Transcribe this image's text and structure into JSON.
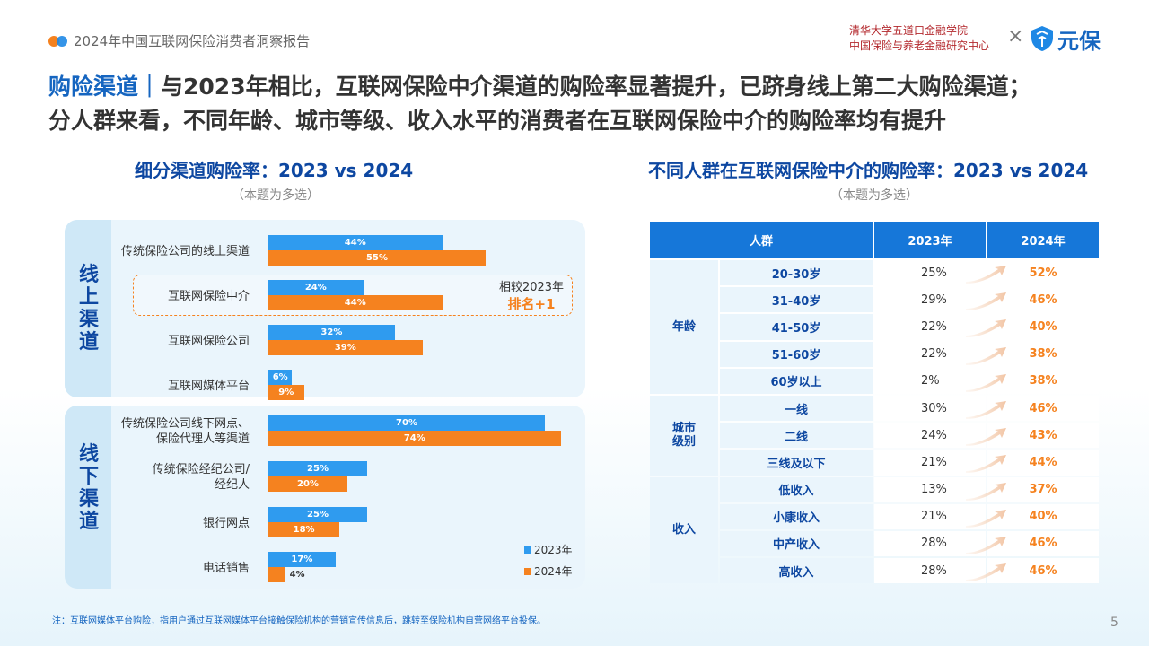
{
  "header": {
    "report_title": "2024年中国互联网保险消费者洞察报告",
    "partner_line1": "清华大学五道口金融学院",
    "partner_line2": "中国保险与养老金融研究中心",
    "times": "×",
    "logo_name": "元保"
  },
  "headline": {
    "accent": "购险渠道｜",
    "line1": "与2023年相比，互联网保险中介渠道的购险率显著提升，已跻身线上第二大购险渠道；",
    "line2": "分人群来看，不同年龄、城市等级、收入水平的消费者在互联网保险中介的购险率均有提升"
  },
  "left_section": {
    "title": "细分渠道购险率：2023 vs 2024",
    "subtitle": "（本题为多选）",
    "online_label": [
      "线",
      "上",
      "渠",
      "道"
    ],
    "offline_label": [
      "线",
      "下",
      "渠",
      "道"
    ],
    "compare_note_line1": "相较2023年",
    "compare_note_line2": "排名+1"
  },
  "right_section": {
    "title": "不同人群在互联网保险中介的购险率：2023 vs 2024",
    "subtitle": "（本题为多选）",
    "col_headers": [
      "人群",
      "2023年",
      "2024年"
    ]
  },
  "chart_data": [
    {
      "type": "bar",
      "orientation": "horizontal",
      "categories": [
        "传统保险公司的线上渠道",
        "互联网保险中介",
        "互联网保险公司",
        "互联网媒体平台",
        "传统保险公司线下网点、保险代理人等渠道",
        "传统保险经纪公司/经纪人",
        "银行网点",
        "电话销售"
      ],
      "category_lines": [
        [
          "传统保险公司的线上渠道"
        ],
        [
          "互联网保险中介"
        ],
        [
          "互联网保险公司"
        ],
        [
          "互联网媒体平台"
        ],
        [
          "传统保险公司线下网点、",
          "保险代理人等渠道"
        ],
        [
          "传统保险经纪公司/",
          "经纪人"
        ],
        [
          "银行网点"
        ],
        [
          "电话销售"
        ]
      ],
      "groups": [
        {
          "name": "线上渠道",
          "categories": [
            0,
            1,
            2,
            3
          ]
        },
        {
          "name": "线下渠道",
          "categories": [
            4,
            5,
            6,
            7
          ]
        }
      ],
      "series": [
        {
          "name": "2023年",
          "values": [
            44,
            24,
            32,
            6,
            70,
            25,
            25,
            17
          ],
          "color": "#2f9bef"
        },
        {
          "name": "2024年",
          "values": [
            55,
            44,
            39,
            9,
            74,
            20,
            18,
            4
          ],
          "color": "#f5821f"
        }
      ],
      "value_suffix": "%",
      "legend_position": "bottom-right"
    },
    {
      "type": "table",
      "groups": [
        {
          "name": "年龄",
          "rows": [
            {
              "label": "20-30岁",
              "v2023": "25%",
              "v2024": "52%"
            },
            {
              "label": "31-40岁",
              "v2023": "29%",
              "v2024": "46%"
            },
            {
              "label": "41-50岁",
              "v2023": "22%",
              "v2024": "40%"
            },
            {
              "label": "51-60岁",
              "v2023": "22%",
              "v2024": "38%"
            },
            {
              "label": "60岁以上",
              "v2023": "2%",
              "v2024": "38%"
            }
          ]
        },
        {
          "name": "城市级别",
          "rows": [
            {
              "label": "一线",
              "v2023": "30%",
              "v2024": "46%"
            },
            {
              "label": "二线",
              "v2023": "24%",
              "v2024": "43%"
            },
            {
              "label": "三线及以下",
              "v2023": "21%",
              "v2024": "44%"
            }
          ]
        },
        {
          "name": "收入",
          "rows": [
            {
              "label": "低收入",
              "v2023": "13%",
              "v2024": "37%"
            },
            {
              "label": "小康收入",
              "v2023": "21%",
              "v2024": "40%"
            },
            {
              "label": "中产收入",
              "v2023": "28%",
              "v2024": "46%"
            },
            {
              "label": "高收入",
              "v2023": "28%",
              "v2024": "46%"
            }
          ]
        }
      ]
    }
  ],
  "footnote": "注：互联网媒体平台购险，指用户通过互联网媒体平台接触保险机构的营销宣传信息后，跳转至保险机构自营网络平台投保。",
  "page_number": "5"
}
